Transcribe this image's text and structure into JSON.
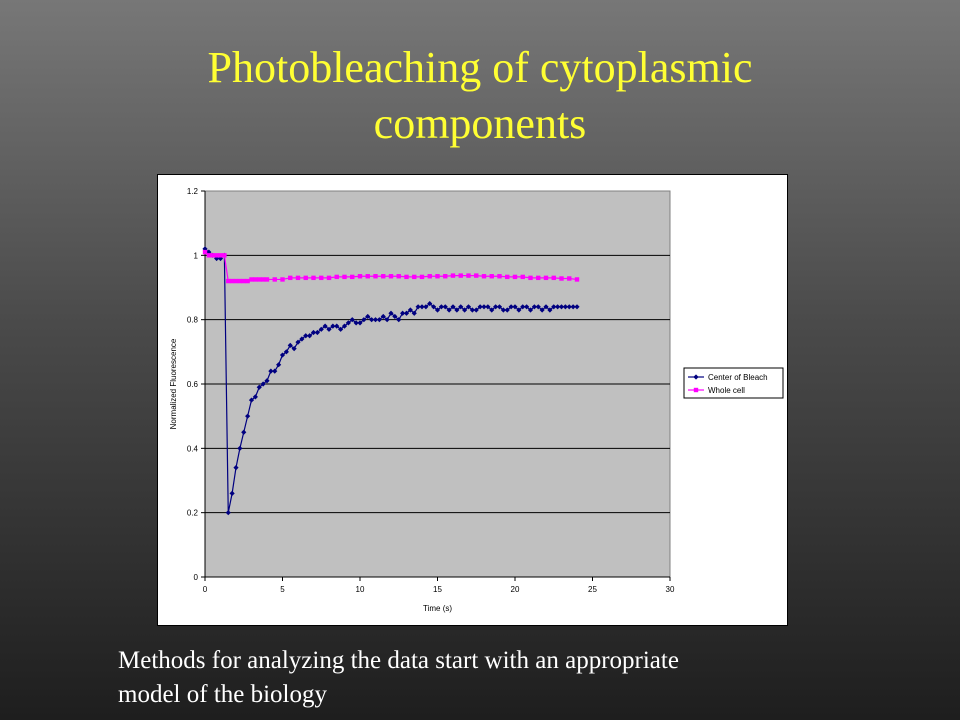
{
  "slide": {
    "title_line1": "Photobleaching of cytoplasmic",
    "title_line2": "components",
    "caption_line1": "Methods for analyzing the data start with an appropriate",
    "caption_line2": "model of the biology",
    "title_color": "#ffff33",
    "caption_color": "#ffffff"
  },
  "chart_data": {
    "type": "line",
    "title": "",
    "xlabel": "Time (s)",
    "ylabel": "Normalized Fluorescence",
    "xlim": [
      0,
      30
    ],
    "ylim": [
      0,
      1.2
    ],
    "x_ticks": [
      "0",
      "5",
      "10",
      "15",
      "20",
      "25",
      "30"
    ],
    "y_ticks": [
      "0",
      "0.2",
      "0.4",
      "0.6",
      "0.8",
      "1",
      "1.2"
    ],
    "grid": "horizontal",
    "plot_background": "#c0c0c0",
    "legend_position": "right",
    "series": [
      {
        "name": "Center of Bleach",
        "color": "#000080",
        "marker": "diamond",
        "points": [
          [
            0,
            1.02
          ],
          [
            0.25,
            1.01
          ],
          [
            0.5,
            1.0
          ],
          [
            0.75,
            0.99
          ],
          [
            1.0,
            0.99
          ],
          [
            1.25,
            1.0
          ],
          [
            1.5,
            0.2
          ],
          [
            1.75,
            0.26
          ],
          [
            2.0,
            0.34
          ],
          [
            2.25,
            0.4
          ],
          [
            2.5,
            0.45
          ],
          [
            2.75,
            0.5
          ],
          [
            3.0,
            0.55
          ],
          [
            3.25,
            0.56
          ],
          [
            3.5,
            0.59
          ],
          [
            3.75,
            0.6
          ],
          [
            4.0,
            0.61
          ],
          [
            4.25,
            0.64
          ],
          [
            4.5,
            0.64
          ],
          [
            4.75,
            0.66
          ],
          [
            5.0,
            0.69
          ],
          [
            5.25,
            0.7
          ],
          [
            5.5,
            0.72
          ],
          [
            5.75,
            0.71
          ],
          [
            6.0,
            0.73
          ],
          [
            6.25,
            0.74
          ],
          [
            6.5,
            0.75
          ],
          [
            6.75,
            0.75
          ],
          [
            7.0,
            0.76
          ],
          [
            7.25,
            0.76
          ],
          [
            7.5,
            0.77
          ],
          [
            7.75,
            0.78
          ],
          [
            8.0,
            0.77
          ],
          [
            8.25,
            0.78
          ],
          [
            8.5,
            0.78
          ],
          [
            8.75,
            0.77
          ],
          [
            9.0,
            0.78
          ],
          [
            9.25,
            0.79
          ],
          [
            9.5,
            0.8
          ],
          [
            9.75,
            0.79
          ],
          [
            10.0,
            0.79
          ],
          [
            10.25,
            0.8
          ],
          [
            10.5,
            0.81
          ],
          [
            10.75,
            0.8
          ],
          [
            11.0,
            0.8
          ],
          [
            11.25,
            0.8
          ],
          [
            11.5,
            0.81
          ],
          [
            11.75,
            0.8
          ],
          [
            12.0,
            0.82
          ],
          [
            12.25,
            0.81
          ],
          [
            12.5,
            0.8
          ],
          [
            12.75,
            0.82
          ],
          [
            13.0,
            0.82
          ],
          [
            13.25,
            0.83
          ],
          [
            13.5,
            0.82
          ],
          [
            13.75,
            0.84
          ],
          [
            14.0,
            0.84
          ],
          [
            14.25,
            0.84
          ],
          [
            14.5,
            0.85
          ],
          [
            14.75,
            0.84
          ],
          [
            15.0,
            0.83
          ],
          [
            15.25,
            0.84
          ],
          [
            15.5,
            0.84
          ],
          [
            15.75,
            0.83
          ],
          [
            16.0,
            0.84
          ],
          [
            16.25,
            0.83
          ],
          [
            16.5,
            0.84
          ],
          [
            16.75,
            0.83
          ],
          [
            17.0,
            0.84
          ],
          [
            17.25,
            0.83
          ],
          [
            17.5,
            0.83
          ],
          [
            17.75,
            0.84
          ],
          [
            18.0,
            0.84
          ],
          [
            18.25,
            0.84
          ],
          [
            18.5,
            0.83
          ],
          [
            18.75,
            0.84
          ],
          [
            19.0,
            0.84
          ],
          [
            19.25,
            0.83
          ],
          [
            19.5,
            0.83
          ],
          [
            19.75,
            0.84
          ],
          [
            20.0,
            0.84
          ],
          [
            20.25,
            0.83
          ],
          [
            20.5,
            0.84
          ],
          [
            20.75,
            0.84
          ],
          [
            21.0,
            0.83
          ],
          [
            21.25,
            0.84
          ],
          [
            21.5,
            0.84
          ],
          [
            21.75,
            0.83
          ],
          [
            22.0,
            0.84
          ],
          [
            22.25,
            0.83
          ],
          [
            22.5,
            0.84
          ],
          [
            22.75,
            0.84
          ],
          [
            23.0,
            0.84
          ],
          [
            23.25,
            0.84
          ],
          [
            23.5,
            0.84
          ],
          [
            23.75,
            0.84
          ],
          [
            24.0,
            0.84
          ]
        ]
      },
      {
        "name": "Whole cell",
        "color": "#ff00ff",
        "marker": "square",
        "points": [
          [
            0,
            1.01
          ],
          [
            0.25,
            1.0
          ],
          [
            0.5,
            1.0
          ],
          [
            0.75,
            1.0
          ],
          [
            1.0,
            1.0
          ],
          [
            1.25,
            1.0
          ],
          [
            1.5,
            0.92
          ],
          [
            1.75,
            0.92
          ],
          [
            2.0,
            0.92
          ],
          [
            2.25,
            0.92
          ],
          [
            2.5,
            0.92
          ],
          [
            2.75,
            0.92
          ],
          [
            3.0,
            0.925
          ],
          [
            3.25,
            0.925
          ],
          [
            3.5,
            0.925
          ],
          [
            3.75,
            0.925
          ],
          [
            4.0,
            0.925
          ],
          [
            4.5,
            0.925
          ],
          [
            5.0,
            0.925
          ],
          [
            5.5,
            0.93
          ],
          [
            6.0,
            0.93
          ],
          [
            6.5,
            0.93
          ],
          [
            7.0,
            0.93
          ],
          [
            7.5,
            0.93
          ],
          [
            8.0,
            0.93
          ],
          [
            8.5,
            0.933
          ],
          [
            9.0,
            0.933
          ],
          [
            9.5,
            0.933
          ],
          [
            10.0,
            0.935
          ],
          [
            10.5,
            0.935
          ],
          [
            11.0,
            0.935
          ],
          [
            11.5,
            0.935
          ],
          [
            12.0,
            0.935
          ],
          [
            12.5,
            0.935
          ],
          [
            13.0,
            0.933
          ],
          [
            13.5,
            0.933
          ],
          [
            14.0,
            0.933
          ],
          [
            14.5,
            0.935
          ],
          [
            15.0,
            0.935
          ],
          [
            15.5,
            0.935
          ],
          [
            16.0,
            0.937
          ],
          [
            16.5,
            0.937
          ],
          [
            17.0,
            0.937
          ],
          [
            17.5,
            0.937
          ],
          [
            18.0,
            0.935
          ],
          [
            18.5,
            0.935
          ],
          [
            19.0,
            0.935
          ],
          [
            19.5,
            0.933
          ],
          [
            20.0,
            0.933
          ],
          [
            20.5,
            0.933
          ],
          [
            21.0,
            0.93
          ],
          [
            21.5,
            0.93
          ],
          [
            22.0,
            0.93
          ],
          [
            22.5,
            0.93
          ],
          [
            23.0,
            0.928
          ],
          [
            23.5,
            0.928
          ],
          [
            24.0,
            0.925
          ]
        ]
      }
    ]
  }
}
